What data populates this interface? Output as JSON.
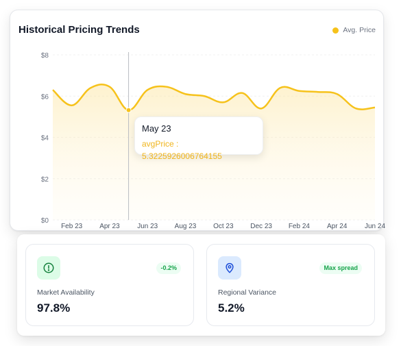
{
  "chart": {
    "title": "Historical Pricing Trends",
    "legend_label": "Avg. Price",
    "accent_color": "#f6c21b",
    "tooltip": {
      "date": "May 23",
      "value_text": "avgPrice : 5.3225926006764155"
    }
  },
  "chart_data": {
    "type": "area",
    "series": [
      {
        "name": "Avg. Price",
        "points": [
          {
            "x": "2023-01",
            "y": 6.3
          },
          {
            "x": "2023-02",
            "y": 5.55
          },
          {
            "x": "2023-03",
            "y": 6.4
          },
          {
            "x": "2023-04",
            "y": 6.45
          },
          {
            "x": "2023-05",
            "y": 5.32
          },
          {
            "x": "2023-06",
            "y": 6.3
          },
          {
            "x": "2023-07",
            "y": 6.45
          },
          {
            "x": "2023-08",
            "y": 6.1
          },
          {
            "x": "2023-09",
            "y": 6.0
          },
          {
            "x": "2023-10",
            "y": 5.7
          },
          {
            "x": "2023-11",
            "y": 6.15
          },
          {
            "x": "2023-12",
            "y": 5.4
          },
          {
            "x": "2024-01",
            "y": 6.4
          },
          {
            "x": "2024-02",
            "y": 6.25
          },
          {
            "x": "2024-03",
            "y": 6.2
          },
          {
            "x": "2024-04",
            "y": 6.1
          },
          {
            "x": "2024-05",
            "y": 5.4
          },
          {
            "x": "2024-06",
            "y": 5.45
          }
        ]
      }
    ],
    "x_tick_labels": [
      "Feb 23",
      "Apr 23",
      "Jun 23",
      "Aug 23",
      "Oct 23",
      "Dec 23",
      "Feb 24",
      "Apr 24",
      "Jun 24"
    ],
    "y_tick_labels": [
      "$0",
      "$2",
      "$4",
      "$6",
      "$8"
    ],
    "y_ticks": [
      0,
      2,
      4,
      6,
      8
    ],
    "ylim": [
      0,
      8
    ],
    "grid": true,
    "legend": "top-right",
    "highlighted_x": "2023-05"
  },
  "stats": [
    {
      "label": "Market Availability",
      "value": "97.8%",
      "badge": "-0.2%",
      "icon": "alert-circle-icon"
    },
    {
      "label": "Regional Variance",
      "value": "5.2%",
      "badge": "Max spread",
      "icon": "map-pin-icon"
    }
  ]
}
